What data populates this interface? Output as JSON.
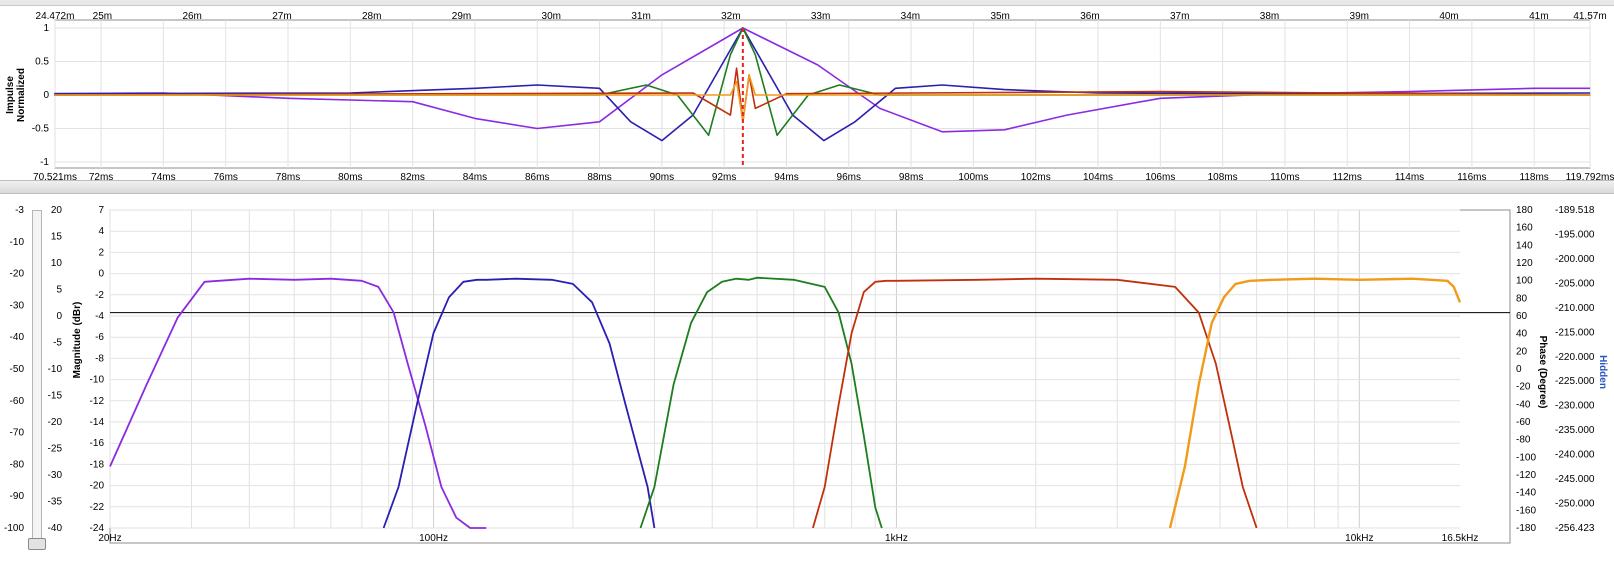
{
  "impulse": {
    "ylabel_line1": "Impulse",
    "ylabel_line2": "Normalized",
    "y_ticks": [
      "1",
      "0.5",
      "0",
      "-0.5",
      "-1"
    ],
    "distance_ticks": [
      "24.472m",
      "25m",
      "26m",
      "27m",
      "28m",
      "29m",
      "30m",
      "31m",
      "32m",
      "33m",
      "34m",
      "35m",
      "36m",
      "37m",
      "38m",
      "39m",
      "40m",
      "41m",
      "41.57m"
    ],
    "time_ticks": [
      "70.521ms",
      "72ms",
      "74ms",
      "76ms",
      "78ms",
      "80ms",
      "82ms",
      "84ms",
      "86ms",
      "88ms",
      "90ms",
      "92ms",
      "94ms",
      "96ms",
      "98ms",
      "100ms",
      "102ms",
      "104ms",
      "106ms",
      "108ms",
      "110ms",
      "112ms",
      "114ms",
      "116ms",
      "118ms",
      "119.792ms"
    ],
    "marker_ms": 92.6
  },
  "frequency": {
    "ylabel_left": "Magnitude (dBr)",
    "ylabel_right": "Phase (Degree)",
    "hidden_label": "Hidden",
    "axis_a_ticks": [
      "-3",
      "-10",
      "-20",
      "-30",
      "-40",
      "-50",
      "-60",
      "-70",
      "-80",
      "-90",
      "-100"
    ],
    "axis_b_ticks": [
      "20",
      "15",
      "10",
      "5",
      "0",
      "-5",
      "-10",
      "-15",
      "-20",
      "-25",
      "-30",
      "-35",
      "-40"
    ],
    "magnitude_ticks": [
      "7",
      "4",
      "2",
      "0",
      "-2",
      "-4",
      "-6",
      "-8",
      "-10",
      "-12",
      "-14",
      "-16",
      "-18",
      "-20",
      "-22",
      "-24"
    ],
    "phase_ticks": [
      "180",
      "160",
      "140",
      "120",
      "100",
      "80",
      "60",
      "40",
      "20",
      "0",
      "-20",
      "-40",
      "-60",
      "-80",
      "-100",
      "-120",
      "-140",
      "-160",
      "-180"
    ],
    "hidden_ticks": [
      "-189.518",
      "-195.000",
      "-200.000",
      "-205.000",
      "-210.000",
      "-215.000",
      "-220.000",
      "-225.000",
      "-230.000",
      "-235.000",
      "-240.000",
      "-245.000",
      "-250.000",
      "-256.423"
    ],
    "x_ticks": [
      "20Hz",
      "100Hz",
      "1kHz",
      "10kHz",
      "16.5kHz"
    ],
    "reference_db": -3
  },
  "colors": {
    "purple": "#8a2be2",
    "blue": "#2a1fb0",
    "green": "#1e7d1e",
    "red": "#c0300a",
    "orange": "#f29a1b",
    "grid": "#e2e2e2",
    "marker": "#e8231a"
  },
  "chart_data": [
    {
      "type": "line",
      "title": "",
      "xlabel": "",
      "ylabel": "Impulse Normalized",
      "xlim": [
        70.521,
        119.792
      ],
      "ylim": [
        -1,
        1
      ],
      "series": [
        {
          "color": "#8a2be2",
          "x": [
            70.5,
            74,
            78,
            82,
            84,
            86,
            88,
            90,
            92.6,
            95,
            97,
            99,
            101,
            103,
            106,
            110,
            114,
            118,
            119.8
          ],
          "values": [
            0.02,
            0.03,
            -0.05,
            -0.1,
            -0.35,
            -0.5,
            -0.4,
            0.3,
            1.0,
            0.45,
            -0.2,
            -0.55,
            -0.52,
            -0.3,
            -0.05,
            0.02,
            0.05,
            0.1,
            0.1
          ]
        },
        {
          "color": "#2a1fb0",
          "x": [
            70.5,
            80,
            84,
            86,
            88,
            89,
            90,
            91,
            92.6,
            94.2,
            95.2,
            96.2,
            97.5,
            99,
            101,
            104,
            110,
            119.8
          ],
          "values": [
            0.02,
            0.03,
            0.1,
            0.15,
            0.1,
            -0.4,
            -0.68,
            -0.3,
            1.0,
            -0.3,
            -0.68,
            -0.4,
            0.1,
            0.15,
            0.08,
            0.03,
            0.02,
            0.03
          ]
        },
        {
          "color": "#1e7d1e",
          "x": [
            70.5,
            88,
            89.5,
            90.5,
            91.5,
            92.2,
            92.6,
            93,
            93.7,
            94.7,
            95.7,
            97,
            119.8
          ],
          "values": [
            0.0,
            0.0,
            0.15,
            0.0,
            -0.6,
            0.6,
            1.0,
            0.6,
            -0.6,
            0.0,
            0.15,
            0.0,
            0.0
          ]
        },
        {
          "color": "#c0300a",
          "x": [
            70.5,
            91,
            92.2,
            92.4,
            92.6,
            92.8,
            93,
            94,
            106,
            119.8
          ],
          "values": [
            0.0,
            0.03,
            -0.3,
            0.4,
            -0.4,
            0.3,
            -0.2,
            0.02,
            0.05,
            0.0
          ]
        },
        {
          "color": "#f29a1b",
          "x": [
            70.5,
            92.2,
            92.4,
            92.6,
            92.8,
            93,
            119.8
          ],
          "values": [
            0.0,
            0.0,
            0.2,
            -0.4,
            0.3,
            0.0,
            0.0
          ]
        }
      ]
    },
    {
      "type": "line",
      "title": "",
      "xlabel": "",
      "ylabel": "Magnitude (dBr)",
      "xscale": "log",
      "xlim": [
        20,
        16500
      ],
      "ylim": [
        -24,
        7
      ],
      "series": [
        {
          "color": "#8a2be2",
          "x": [
            20,
            24,
            28,
            32,
            40,
            50,
            60,
            70,
            76,
            82,
            88,
            96,
            104,
            112,
            120,
            130
          ],
          "values": [
            -18,
            -10,
            -3.5,
            0,
            0.3,
            0.2,
            0.3,
            0.1,
            -0.5,
            -3,
            -8,
            -14,
            -20,
            -23,
            -24,
            -24
          ]
        },
        {
          "color": "#2a1fb0",
          "x": [
            78,
            84,
            92,
            100,
            108,
            116,
            124,
            130,
            150,
            180,
            200,
            220,
            240,
            260,
            290,
            300
          ],
          "values": [
            -24,
            -20,
            -12,
            -5,
            -1.5,
            0,
            0.2,
            0.2,
            0.3,
            0.2,
            -0.2,
            -2,
            -6,
            -12,
            -20,
            -24
          ]
        },
        {
          "color": "#1e7d1e",
          "x": [
            280,
            300,
            330,
            360,
            390,
            420,
            450,
            480,
            500,
            600,
            700,
            750,
            800,
            850,
            900,
            930
          ],
          "values": [
            -24,
            -20,
            -10,
            -4,
            -1,
            0,
            0.3,
            0.2,
            0.4,
            0.2,
            -0.5,
            -3,
            -8,
            -15,
            -22,
            -24
          ]
        },
        {
          "color": "#c0300a",
          "x": [
            660,
            700,
            750,
            800,
            850,
            900,
            950,
            1000,
            1500,
            2000,
            3000,
            4000,
            4500,
            4900,
            5300,
            5600,
            6000
          ],
          "values": [
            -24,
            -20,
            -12,
            -5,
            -1,
            0,
            0.1,
            0.1,
            0.2,
            0.3,
            0.2,
            -0.5,
            -3,
            -8,
            -15,
            -20,
            -24
          ]
        },
        {
          "color": "#f29a1b",
          "x": [
            3900,
            4200,
            4500,
            4800,
            5100,
            5400,
            5800,
            6500,
            8000,
            10000,
            13000,
            15500,
            16000,
            16500
          ],
          "values": [
            -24,
            -18,
            -10,
            -4,
            -1.5,
            -0.2,
            0.1,
            0.2,
            0.3,
            0.2,
            0.3,
            0.1,
            -0.5,
            -2
          ]
        }
      ]
    }
  ]
}
